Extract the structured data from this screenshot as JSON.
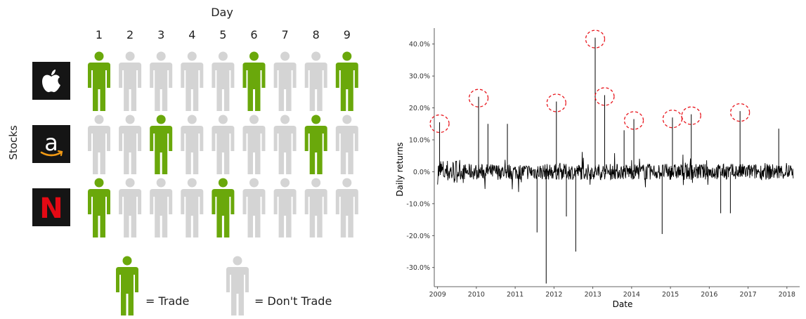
{
  "left_panel": {
    "day_title": "Day",
    "days": [
      "1",
      "2",
      "3",
      "4",
      "5",
      "6",
      "7",
      "8",
      "9"
    ],
    "stocks_label": "Stocks",
    "stocks": [
      {
        "name": "apple-logo",
        "trade_days": [
          1,
          6,
          9
        ]
      },
      {
        "name": "amazon-logo",
        "trade_days": [
          3,
          8
        ]
      },
      {
        "name": "netflix-logo",
        "trade_days": [
          1,
          5
        ]
      }
    ],
    "legend": {
      "trade": "= Trade",
      "dont_trade": "= Don't Trade"
    },
    "colors": {
      "trade": "#6aa80b",
      "dont_trade": "#d4d4d4",
      "logo_bg": "#151515"
    },
    "logo_glyphs": {
      "amazon": "a",
      "netflix": "N"
    }
  },
  "chart_data": {
    "type": "line",
    "title": "",
    "xlabel": "Date",
    "ylabel": "Daily returns",
    "x_range": [
      "2008-12-01",
      "2018-05-01"
    ],
    "ylim": [
      -0.36,
      0.45
    ],
    "x_ticks": [
      "2009",
      "2010",
      "2011",
      "2012",
      "2013",
      "2014",
      "2015",
      "2016",
      "2017",
      "2018"
    ],
    "y_ticks": [
      {
        "value": 0.4,
        "label": "40.0%"
      },
      {
        "value": 0.3,
        "label": "30.0%"
      },
      {
        "value": 0.2,
        "label": "20.0%"
      },
      {
        "value": 0.1,
        "label": "10.0%"
      },
      {
        "value": 0.0,
        "label": "0.0%"
      },
      {
        "value": -0.1,
        "label": "-10.0%"
      },
      {
        "value": -0.2,
        "label": "-20.0%"
      },
      {
        "value": -0.3,
        "label": "-30.0%"
      }
    ],
    "grid": false,
    "line_color": "#000000",
    "spikes": [
      {
        "date": "2009-01-20",
        "value": 0.155
      },
      {
        "date": "2010-01-22",
        "value": 0.235
      },
      {
        "date": "2010-04-20",
        "value": 0.15
      },
      {
        "date": "2010-10-20",
        "value": 0.15
      },
      {
        "date": "2011-10-20",
        "value": -0.35
      },
      {
        "date": "2011-07-26",
        "value": -0.19
      },
      {
        "date": "2012-01-24",
        "value": 0.22
      },
      {
        "date": "2012-04-27",
        "value": -0.14
      },
      {
        "date": "2012-07-24",
        "value": -0.25
      },
      {
        "date": "2013-01-23",
        "value": 0.42
      },
      {
        "date": "2013-04-22",
        "value": 0.24
      },
      {
        "date": "2013-10-22",
        "value": 0.13
      },
      {
        "date": "2014-01-22",
        "value": 0.165
      },
      {
        "date": "2014-10-15",
        "value": -0.195
      },
      {
        "date": "2015-01-20",
        "value": 0.17
      },
      {
        "date": "2015-07-16",
        "value": 0.18
      },
      {
        "date": "2016-04-18",
        "value": -0.13
      },
      {
        "date": "2016-07-18",
        "value": -0.13
      },
      {
        "date": "2016-10-17",
        "value": 0.19
      },
      {
        "date": "2017-10-16",
        "value": 0.135
      }
    ],
    "highlighted": [
      {
        "date": "2009-01-20",
        "value": 0.155
      },
      {
        "date": "2010-01-22",
        "value": 0.235
      },
      {
        "date": "2012-01-24",
        "value": 0.22
      },
      {
        "date": "2013-01-23",
        "value": 0.42
      },
      {
        "date": "2013-04-22",
        "value": 0.24
      },
      {
        "date": "2014-01-22",
        "value": 0.165
      },
      {
        "date": "2015-01-20",
        "value": 0.17
      },
      {
        "date": "2015-07-16",
        "value": 0.18
      },
      {
        "date": "2016-10-17",
        "value": 0.19
      }
    ],
    "highlight_color": "#e8161d"
  }
}
